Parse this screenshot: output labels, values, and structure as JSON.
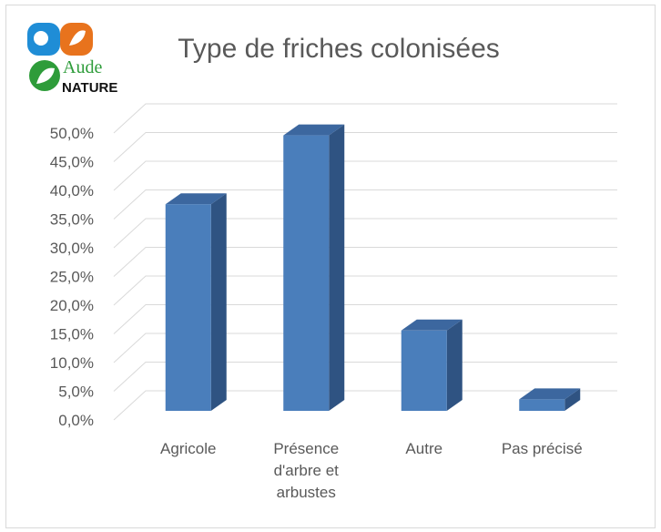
{
  "logo": {
    "line1": "Aude",
    "line2": "NATURE"
  },
  "chart_data": {
    "type": "bar3d",
    "title": "Type de friches colonisées",
    "categories": [
      "Agricole",
      "Présence d'arbre et arbustes",
      "Autre",
      "Pas précisé"
    ],
    "values": [
      36,
      48,
      14,
      2
    ],
    "color": "#4a7ebb",
    "side_color": "#2f5382",
    "top_color": "#3c679f",
    "ylim": [
      0,
      50
    ],
    "yticks": [
      {
        "value": 0,
        "label": "0,0%"
      },
      {
        "value": 5,
        "label": "5,0%"
      },
      {
        "value": 10,
        "label": "10,0%"
      },
      {
        "value": 15,
        "label": "15,0%"
      },
      {
        "value": 20,
        "label": "20,0%"
      },
      {
        "value": 25,
        "label": "25,0%"
      },
      {
        "value": 30,
        "label": "30,0%"
      },
      {
        "value": 35,
        "label": "35,0%"
      },
      {
        "value": 40,
        "label": "40,0%"
      },
      {
        "value": 45,
        "label": "45,0%"
      },
      {
        "value": 50,
        "label": "50,0%"
      }
    ],
    "grid": true
  }
}
